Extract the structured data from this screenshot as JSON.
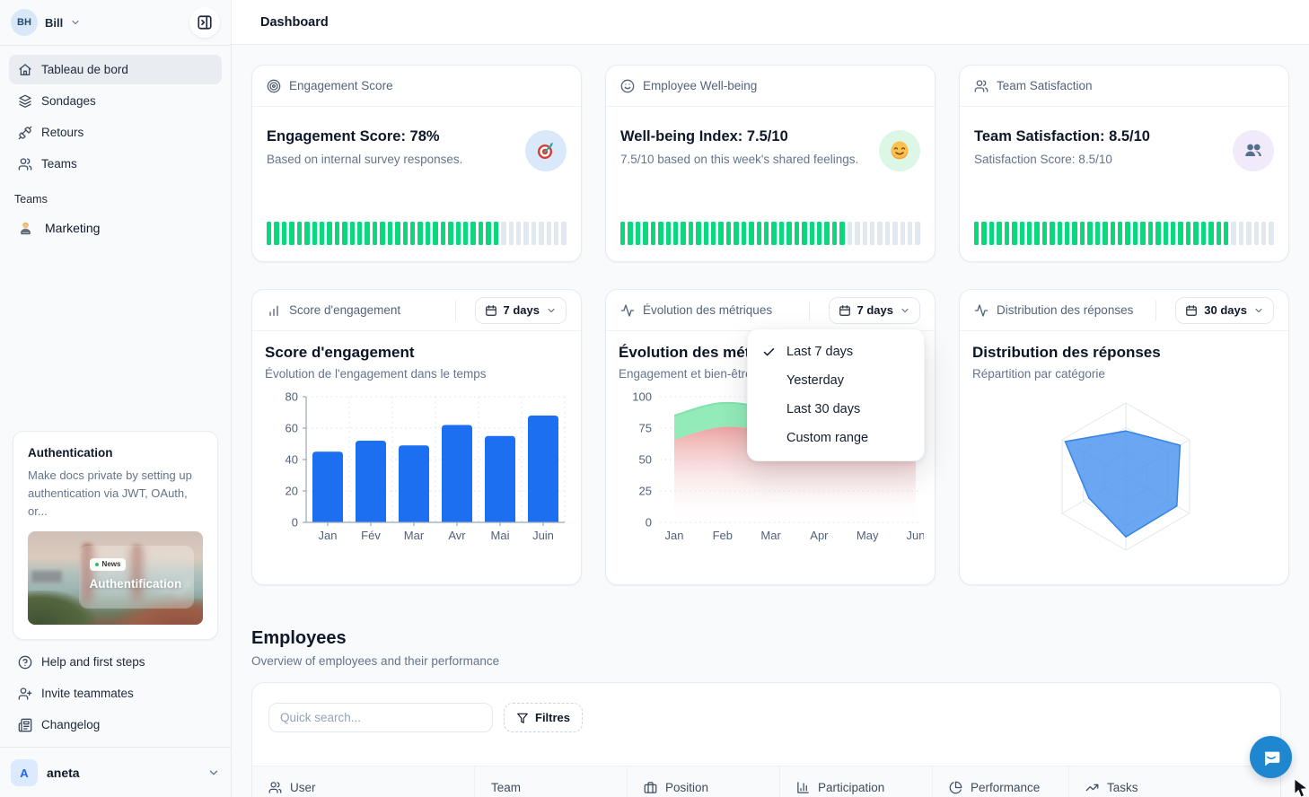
{
  "colors": {
    "accent_blue": "#1d6ff2",
    "tick_green": "#0bd77c",
    "tick_gray": "#e2e8f0",
    "chat_blue": "#1e87cf"
  },
  "sidebar": {
    "user": {
      "initials": "BH",
      "name": "Bill"
    },
    "nav_items": [
      {
        "label": "Tableau de bord",
        "icon": "home-icon",
        "active": true
      },
      {
        "label": "Sondages",
        "icon": "layers-icon",
        "active": false
      },
      {
        "label": "Retours",
        "icon": "unplug-icon",
        "active": false
      },
      {
        "label": "Teams",
        "icon": "users-icon",
        "active": false
      }
    ],
    "teams_section": {
      "label": "Teams",
      "items": [
        {
          "label": "Marketing",
          "icon": "technologist-emoji"
        }
      ]
    },
    "promo": {
      "title": "Authentication",
      "body": "Make docs private by setting up authentication via JWT, OAuth, or...",
      "badge": "News",
      "image_title": "Authentification"
    },
    "footer_items": [
      {
        "label": "Help and first steps",
        "icon": "help-circle-icon"
      },
      {
        "label": "Invite teammates",
        "icon": "user-plus-icon"
      },
      {
        "label": "Changelog",
        "icon": "newspaper-icon"
      }
    ],
    "workspace": {
      "initial": "A",
      "name": "aneta"
    }
  },
  "topbar": {
    "title": "Dashboard"
  },
  "stat_cards": [
    {
      "header": "Engagement Score",
      "header_icon": "target-icon",
      "title": "Engagement Score: 78%",
      "subtitle": "Based on internal survey responses.",
      "badge_icon": "dart-emoji",
      "badge_bg": "#d9e9fa",
      "ticks_total": 40,
      "ticks_filled": 31
    },
    {
      "header": "Employee Well-being",
      "header_icon": "smile-icon",
      "title": "Well-being Index: 7.5/10",
      "subtitle": "7.5/10 based on this week's shared feelings.",
      "badge_icon": "smiley-emoji",
      "badge_bg": "#dcf7e6",
      "ticks_total": 40,
      "ticks_filled": 30
    },
    {
      "header": "Team Satisfaction",
      "header_icon": "users-icon",
      "title": "Team Satisfaction: 8.5/10",
      "subtitle": "Satisfaction Score: 8.5/10",
      "badge_icon": "busts-emoji",
      "badge_bg": "#f1eafa",
      "ticks_total": 40,
      "ticks_filled": 34
    }
  ],
  "chart_cards": [
    {
      "header": "Score d'engagement",
      "header_icon": "bar-chart-icon",
      "range_label": "7 days"
    },
    {
      "header": "Évolution des métriques",
      "header_icon": "activity-icon",
      "range_label": "7 days"
    },
    {
      "header": "Distribution des réponses",
      "header_icon": "activity-icon",
      "range_label": "30 days"
    }
  ],
  "range_menu": {
    "items": [
      {
        "label": "Last 7 days",
        "checked": true
      },
      {
        "label": "Yesterday",
        "checked": false
      },
      {
        "label": "Last 30 days",
        "checked": false
      },
      {
        "label": "Custom range",
        "checked": false
      }
    ]
  },
  "employees": {
    "title": "Employees",
    "subtitle": "Overview of employees and their performance",
    "search_placeholder": "Quick search...",
    "filters_label": "Filtres",
    "columns": [
      {
        "label": "User",
        "icon": "users-icon"
      },
      {
        "label": "Team",
        "icon": null
      },
      {
        "label": "Position",
        "icon": "briefcase-icon"
      },
      {
        "label": "Participation",
        "icon": "bar-chart-axis-icon"
      },
      {
        "label": "Performance",
        "icon": "pie-chart-icon"
      },
      {
        "label": "Tasks",
        "icon": "trending-up-icon"
      }
    ]
  },
  "chart_data": [
    {
      "type": "bar",
      "title": "Score d'engagement",
      "subtitle": "Évolution de l'engagement dans le temps",
      "categories": [
        "Jan",
        "Fév",
        "Mar",
        "Avr",
        "Mai",
        "Juin"
      ],
      "values": [
        45,
        52,
        49,
        62,
        55,
        68
      ],
      "ylim": [
        0,
        80
      ],
      "yticks": [
        0,
        20,
        40,
        60,
        80
      ],
      "color": "#1d6ff2",
      "grid": "dotted",
      "legend": "none"
    },
    {
      "type": "area",
      "title": "Évolution des métriques",
      "subtitle": "Engagement et bien-être",
      "categories": [
        "Jan",
        "Feb",
        "Mar",
        "Apr",
        "May",
        "Jun"
      ],
      "series": [
        {
          "name": "Engagement",
          "values": [
            85,
            95,
            88,
            62,
            65,
            67
          ],
          "color": "#92ebb9",
          "line": "#7fe3ab"
        },
        {
          "name": "Bien-être",
          "values": [
            66,
            76,
            71,
            56,
            59,
            61
          ],
          "color": "#eb9e9e",
          "line": "#e8a2a2"
        }
      ],
      "ylim": [
        0,
        100
      ],
      "yticks": [
        0,
        25,
        50,
        75,
        100
      ],
      "grid": "dotted",
      "legend": "none"
    },
    {
      "type": "radar",
      "title": "Distribution des réponses",
      "subtitle": "Répartition par catégorie",
      "axes_count": 6,
      "values_fraction_of_max": [
        0.62,
        0.85,
        0.8,
        0.82,
        0.58,
        0.95
      ],
      "max": 1,
      "fill": "#5097ee",
      "fill_opacity": 0.85,
      "stroke": "#3584e4",
      "rings": 3
    }
  ]
}
